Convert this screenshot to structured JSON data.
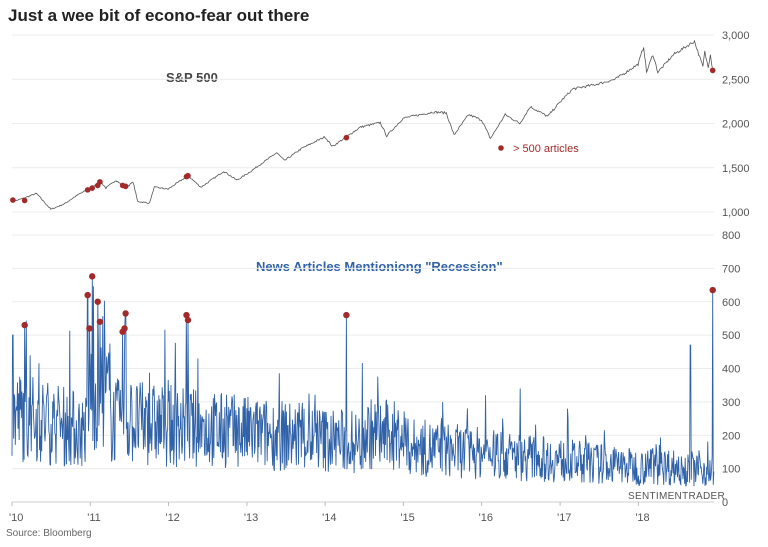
{
  "title": "Just a wee bit of econo-fear out there",
  "source": "Source: Bloomberg",
  "watermark": "SENTIMENTRADER",
  "colors": {
    "sp_line": "#555555",
    "news_line": "#2f62a8",
    "marker": "#a32a2a",
    "grid": "#ececec"
  },
  "chart_data": [
    {
      "type": "line",
      "title": "S&P 500",
      "y_ticks": [
        "3,000",
        "2,500",
        "2,000",
        "1,500",
        "1,000"
      ],
      "ylim": [
        1000,
        3000
      ],
      "legend": {
        "label": "> 500 articles",
        "placement": "middle-right"
      },
      "series": [
        {
          "name": "S&P 500",
          "points": [
            [
              "2010-01-01",
              1115
            ],
            [
              "2010-03-01",
              1160
            ],
            [
              "2010-04-25",
              1210
            ],
            [
              "2010-07-01",
              1030
            ],
            [
              "2010-09-01",
              1090
            ],
            [
              "2010-11-01",
              1190
            ],
            [
              "2011-01-01",
              1270
            ],
            [
              "2011-02-20",
              1340
            ],
            [
              "2011-03-15",
              1270
            ],
            [
              "2011-05-01",
              1360
            ],
            [
              "2011-06-15",
              1270
            ],
            [
              "2011-07-20",
              1340
            ],
            [
              "2011-08-10",
              1120
            ],
            [
              "2011-10-04",
              1100
            ],
            [
              "2011-10-27",
              1280
            ],
            [
              "2011-12-30",
              1258
            ],
            [
              "2012-04-01",
              1410
            ],
            [
              "2012-06-01",
              1280
            ],
            [
              "2012-09-15",
              1460
            ],
            [
              "2012-11-15",
              1360
            ],
            [
              "2013-01-01",
              1430
            ],
            [
              "2013-05-20",
              1670
            ],
            [
              "2013-06-25",
              1580
            ],
            [
              "2013-09-15",
              1720
            ],
            [
              "2013-12-31",
              1850
            ],
            [
              "2014-02-04",
              1740
            ],
            [
              "2014-06-15",
              1960
            ],
            [
              "2014-09-15",
              2010
            ],
            [
              "2014-10-15",
              1860
            ],
            [
              "2014-12-31",
              2060
            ],
            [
              "2015-05-20",
              2130
            ],
            [
              "2015-07-20",
              2120
            ],
            [
              "2015-08-25",
              1870
            ],
            [
              "2015-11-01",
              2100
            ],
            [
              "2016-01-01",
              2040
            ],
            [
              "2016-02-11",
              1830
            ],
            [
              "2016-04-20",
              2100
            ],
            [
              "2016-06-27",
              2000
            ],
            [
              "2016-08-15",
              2190
            ],
            [
              "2016-11-04",
              2080
            ],
            [
              "2016-12-31",
              2240
            ],
            [
              "2017-03-01",
              2390
            ],
            [
              "2017-06-15",
              2440
            ],
            [
              "2017-09-15",
              2500
            ],
            [
              "2017-12-31",
              2670
            ],
            [
              "2018-01-26",
              2870
            ],
            [
              "2018-02-08",
              2580
            ],
            [
              "2018-03-10",
              2780
            ],
            [
              "2018-04-02",
              2580
            ],
            [
              "2018-06-15",
              2780
            ],
            [
              "2018-09-20",
              2930
            ],
            [
              "2018-10-29",
              2640
            ],
            [
              "2018-11-07",
              2810
            ],
            [
              "2018-11-23",
              2630
            ],
            [
              "2018-12-03",
              2790
            ],
            [
              "2018-12-14",
              2600
            ]
          ]
        }
      ],
      "highlighted_points": [
        [
          "2010-01-05",
          1135
        ],
        [
          "2010-03-01",
          1130
        ],
        [
          "2010-12-20",
          1250
        ],
        [
          "2011-01-10",
          1270
        ],
        [
          "2011-02-05",
          1300
        ],
        [
          "2011-02-15",
          1340
        ],
        [
          "2011-06-01",
          1300
        ],
        [
          "2011-06-15",
          1290
        ],
        [
          "2012-03-25",
          1400
        ],
        [
          "2012-04-01",
          1410
        ],
        [
          "2014-04-10",
          1840
        ],
        [
          "2018-12-14",
          2600
        ]
      ]
    },
    {
      "type": "line",
      "title": "News Articles Mentioniong \"Recession\"",
      "y_ticks": [
        "800",
        "700",
        "600",
        "500",
        "400",
        "300",
        "200",
        "100",
        "0"
      ],
      "ylim": [
        0,
        800
      ],
      "x_ticks": [
        "'10",
        "'11",
        "'12",
        "'13",
        "'14",
        "'15",
        "'16",
        "'17",
        "'18"
      ],
      "series": [
        {
          "name": "News Articles Mentioniong \"Recession\"",
          "peaks": [
            [
              "2010-01-05",
              500
            ],
            [
              "2010-03-01",
              530
            ],
            [
              "2010-12-20",
              620
            ],
            [
              "2010-12-28",
              520
            ],
            [
              "2011-01-10",
              676
            ],
            [
              "2011-02-05",
              600
            ],
            [
              "2011-02-15",
              540
            ],
            [
              "2011-06-01",
              510
            ],
            [
              "2011-06-10",
              520
            ],
            [
              "2011-06-15",
              565
            ],
            [
              "2012-03-25",
              560
            ],
            [
              "2012-04-01",
              545
            ],
            [
              "2014-04-10",
              560
            ],
            [
              "2016-01-20",
              320
            ],
            [
              "2016-06-28",
              340
            ],
            [
              "2017-05-01",
              200
            ],
            [
              "2018-09-01",
              470
            ],
            [
              "2018-12-14",
              635
            ]
          ]
        }
      ]
    }
  ],
  "x_range": [
    "2010-01-01",
    "2018-12-20"
  ]
}
